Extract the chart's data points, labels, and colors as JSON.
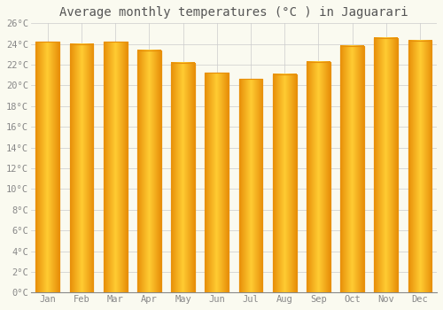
{
  "title": "Average monthly temperatures (°C ) in Jaguarari",
  "months": [
    "Jan",
    "Feb",
    "Mar",
    "Apr",
    "May",
    "Jun",
    "Jul",
    "Aug",
    "Sep",
    "Oct",
    "Nov",
    "Dec"
  ],
  "values": [
    24.2,
    24.0,
    24.2,
    23.4,
    22.2,
    21.2,
    20.6,
    21.1,
    22.3,
    23.8,
    24.6,
    24.3
  ],
  "bar_color_center": "#FFCC33",
  "bar_color_edge": "#E8900A",
  "ylim": [
    0,
    26
  ],
  "yticks": [
    0,
    2,
    4,
    6,
    8,
    10,
    12,
    14,
    16,
    18,
    20,
    22,
    24,
    26
  ],
  "ytick_labels": [
    "0°C",
    "2°C",
    "4°C",
    "6°C",
    "8°C",
    "10°C",
    "12°C",
    "14°C",
    "16°C",
    "18°C",
    "20°C",
    "22°C",
    "24°C",
    "26°C"
  ],
  "bg_color": "#FAFAF0",
  "grid_color": "#CCCCCC",
  "title_fontsize": 10,
  "tick_fontsize": 7.5,
  "bar_width": 0.7,
  "figsize": [
    5.0,
    3.5
  ],
  "dpi": 100
}
